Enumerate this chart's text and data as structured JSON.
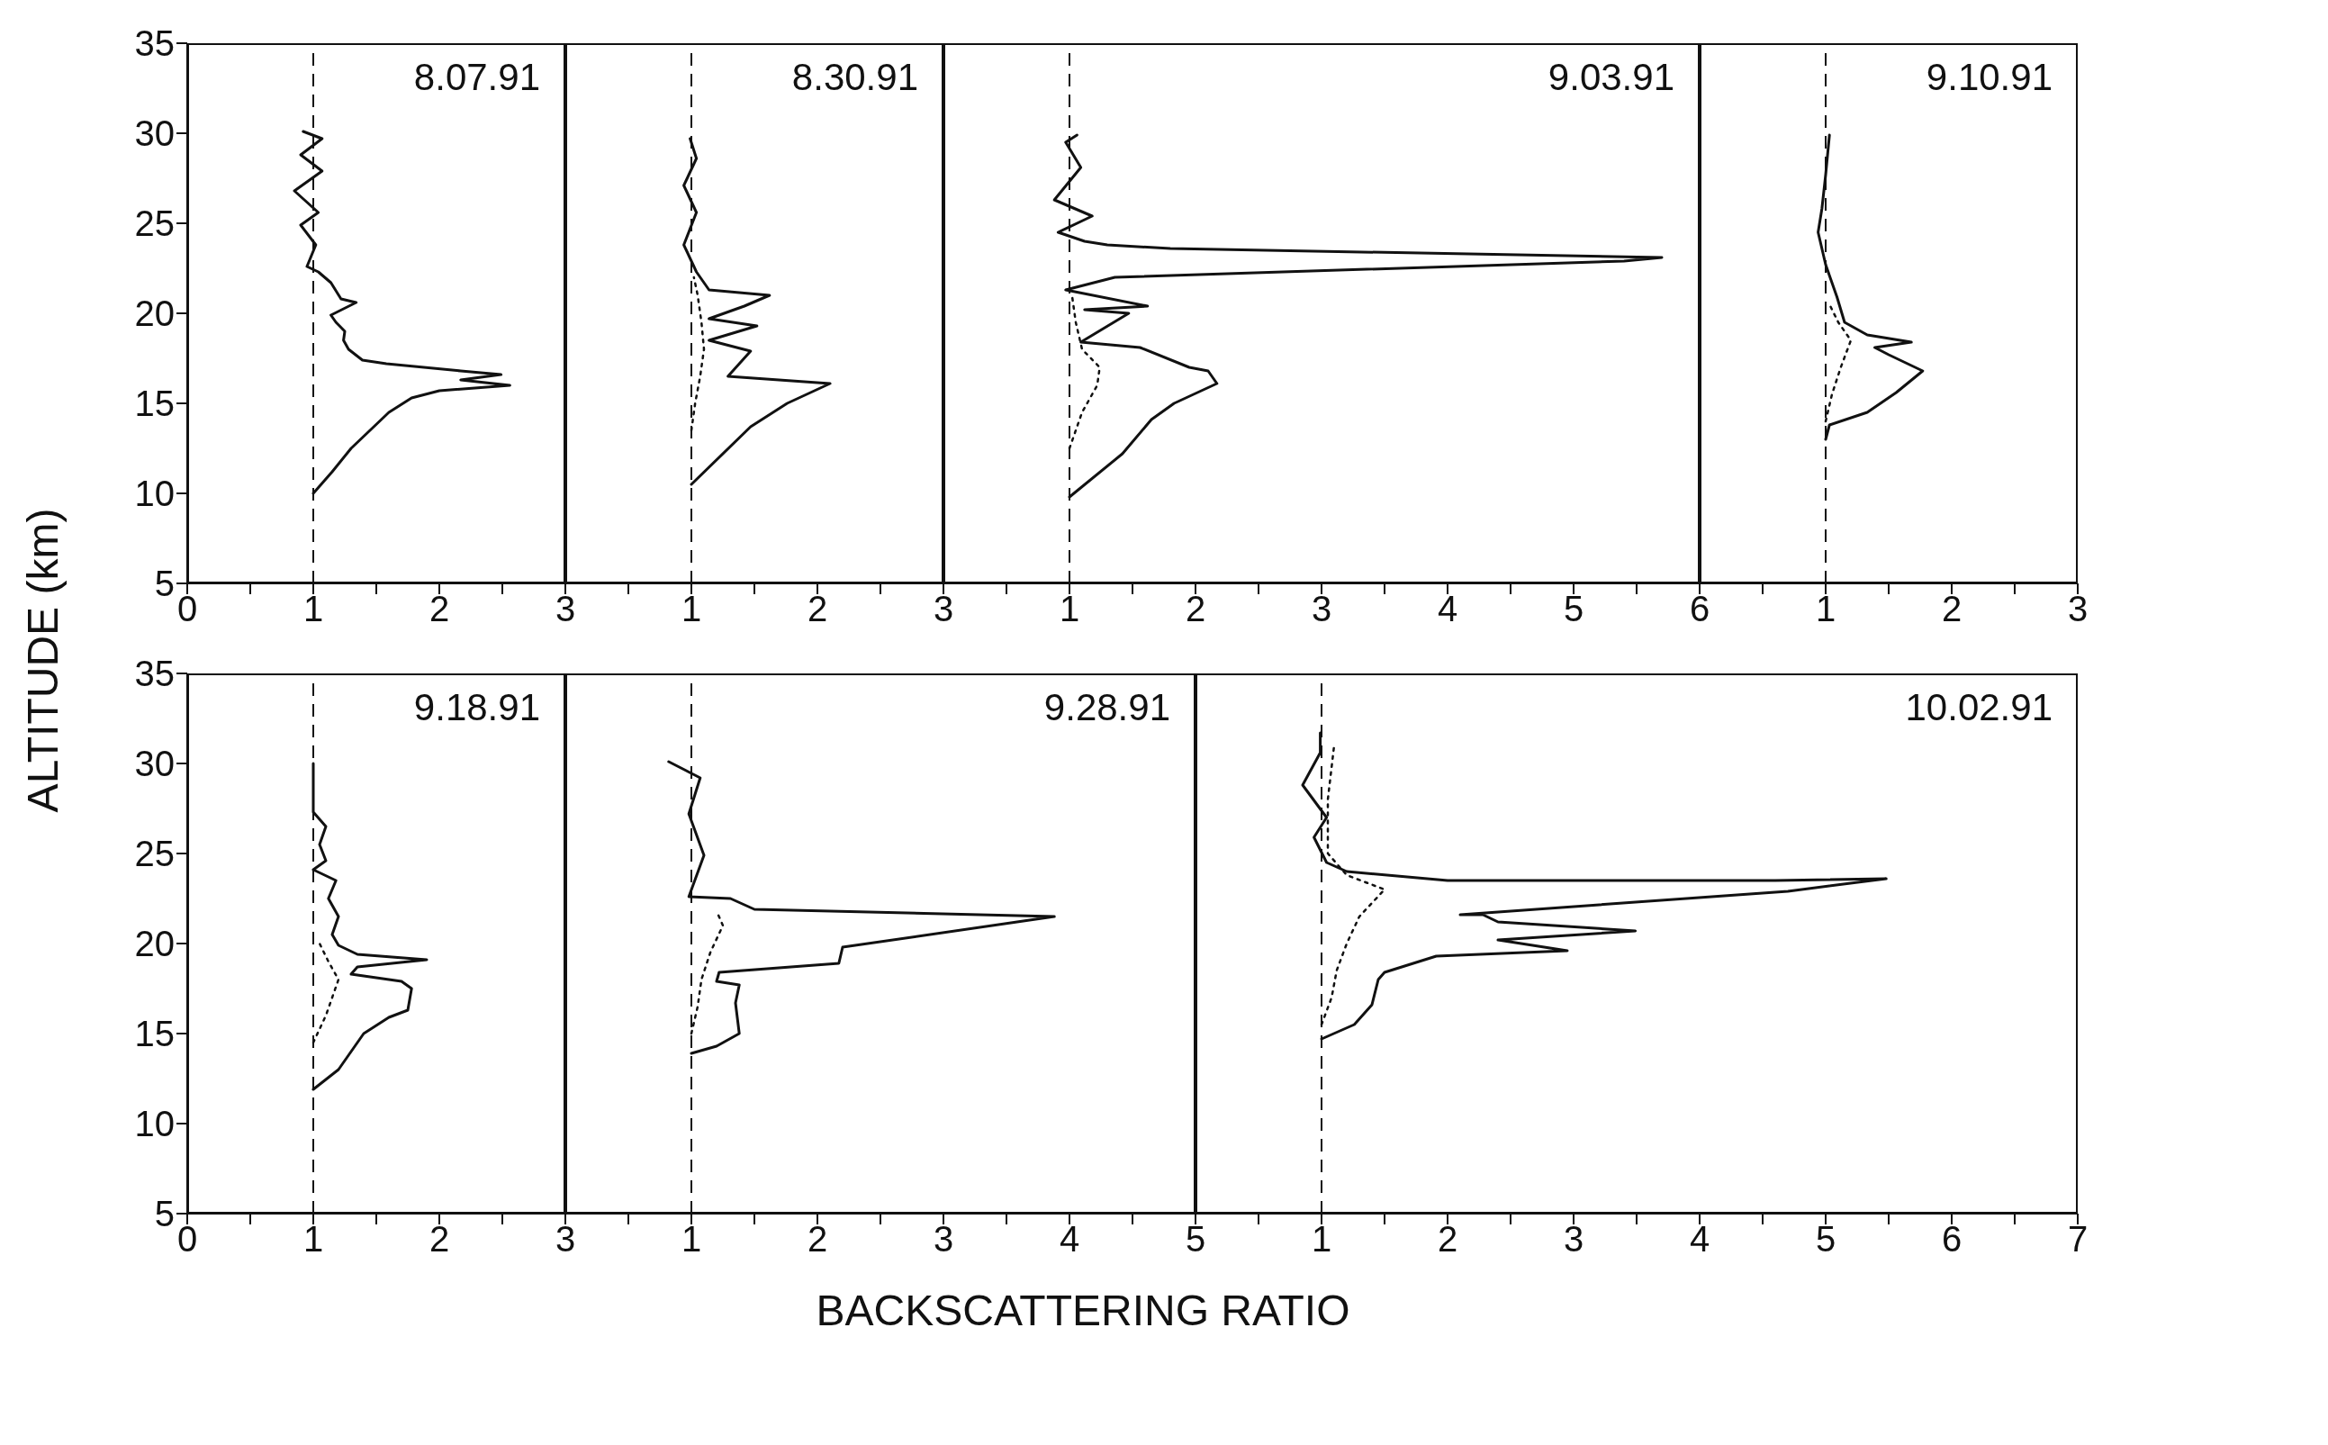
{
  "chart_data": [
    {
      "type": "line",
      "title": "8.07.91",
      "ylabel": "ALTITUDE (km)",
      "xlim": [
        0,
        3
      ],
      "xticks": [
        0,
        {
          "value": 0.5,
          "label": null
        },
        1,
        {
          "value": 1.5,
          "label": null
        },
        2,
        {
          "value": 2.5,
          "label": null
        },
        3
      ],
      "ylim": [
        5,
        35
      ],
      "yticks": [
        5,
        10,
        15,
        20,
        25,
        30,
        35
      ],
      "ref_lines": [
        {
          "axis": "x",
          "value": 1,
          "line_style": "dashed",
          "color": "#111111"
        }
      ],
      "series": [
        {
          "color": "#111111",
          "line_style": "solid",
          "x": [
            1.0,
            1.15,
            1.3,
            1.45,
            1.6,
            1.78,
            2.0,
            2.56,
            2.17,
            2.49,
            2.17,
            1.58,
            1.39,
            1.28,
            1.24,
            1.25,
            1.18,
            1.14,
            1.34,
            1.22,
            1.14,
            1.04,
            0.95,
            1.02,
            0.9,
            1.04,
            0.85,
            1.07,
            0.9,
            1.07,
            0.92
          ],
          "values": [
            10.0,
            11.2,
            12.5,
            13.5,
            14.5,
            15.3,
            15.7,
            16.0,
            16.3,
            16.6,
            16.8,
            17.2,
            17.4,
            18.0,
            18.5,
            19.0,
            19.5,
            19.9,
            20.6,
            20.8,
            21.7,
            22.3,
            22.6,
            23.8,
            24.9,
            25.6,
            26.8,
            27.9,
            28.8,
            29.7,
            30.1
          ]
        }
      ]
    },
    {
      "type": "line",
      "title": "8.30.91",
      "xlim": [
        0,
        3
      ],
      "xticks": [
        {
          "value": 0,
          "label": null
        },
        {
          "value": 0.5,
          "label": null
        },
        1,
        {
          "value": 1.5,
          "label": null
        },
        2,
        {
          "value": 2.5,
          "label": null
        },
        3
      ],
      "ylim": [
        5,
        35
      ],
      "yticks": [
        5,
        10,
        15,
        20,
        25,
        30,
        35
      ],
      "tick_labels": "x",
      "ref_lines": [
        {
          "axis": "x",
          "value": 1,
          "line_style": "dashed",
          "color": "#111111"
        }
      ],
      "series": [
        {
          "color": "#111111",
          "line_style": "solid",
          "x": [
            1.0,
            1.47,
            1.76,
            2.1,
            1.29,
            1.47,
            1.14,
            1.52,
            1.14,
            1.42,
            1.62,
            1.14,
            1.04,
            0.94,
            1.04,
            0.94,
            1.04,
            0.99
          ],
          "values": [
            10.5,
            13.7,
            15.0,
            16.1,
            16.5,
            17.9,
            18.5,
            19.3,
            19.7,
            20.4,
            21.0,
            21.3,
            22.3,
            23.8,
            25.6,
            27.1,
            28.6,
            29.7
          ]
        },
        {
          "color": "#111111",
          "line_style": "dotted",
          "x": [
            1.0,
            1.03,
            1.07,
            1.1,
            1.08,
            1.05,
            1.02
          ],
          "values": [
            13.5,
            15.0,
            16.5,
            18.0,
            19.5,
            21.0,
            22.0
          ]
        }
      ]
    },
    {
      "type": "line",
      "title": "9.03.91",
      "xlim": [
        0,
        6
      ],
      "xticks": [
        {
          "value": 0,
          "label": null
        },
        {
          "value": 0.5,
          "label": null
        },
        1,
        {
          "value": 1.5,
          "label": null
        },
        2,
        {
          "value": 2.5,
          "label": null
        },
        3,
        {
          "value": 3.5,
          "label": null
        },
        4,
        {
          "value": 4.5,
          "label": null
        },
        5,
        {
          "value": 5.5,
          "label": null
        },
        6
      ],
      "ylim": [
        5,
        35
      ],
      "yticks": [
        5,
        10,
        15,
        20,
        25,
        30,
        35
      ],
      "tick_labels": "x",
      "ref_lines": [
        {
          "axis": "x",
          "value": 1,
          "line_style": "dashed",
          "color": "#111111"
        }
      ],
      "series": [
        {
          "color": "#111111",
          "line_style": "solid",
          "x": [
            1.0,
            1.42,
            1.65,
            1.83,
            2.17,
            2.1,
            1.95,
            1.56,
            1.09,
            1.47,
            1.12,
            1.62,
            0.97,
            1.36,
            5.4,
            5.7,
            1.8,
            1.3,
            1.12,
            0.91,
            1.18,
            0.88,
            1.09,
            0.97,
            1.06
          ],
          "values": [
            9.8,
            12.2,
            14.1,
            15.0,
            16.1,
            16.8,
            17.0,
            18.1,
            18.4,
            20.0,
            20.2,
            20.4,
            21.3,
            22.0,
            22.9,
            23.1,
            23.6,
            23.8,
            24.0,
            24.5,
            25.4,
            26.3,
            28.1,
            29.5,
            29.9
          ]
        },
        {
          "color": "#111111",
          "line_style": "dotted",
          "x": [
            1.0,
            1.1,
            1.22,
            1.24,
            1.1,
            1.05,
            1.02
          ],
          "values": [
            12.5,
            14.5,
            16.0,
            17.0,
            18.0,
            19.5,
            21.0
          ]
        }
      ]
    },
    {
      "type": "line",
      "title": "9.10.91",
      "xlim": [
        0,
        3
      ],
      "xticks": [
        {
          "value": 0,
          "label": null
        },
        {
          "value": 0.5,
          "label": null
        },
        1,
        {
          "value": 1.5,
          "label": null
        },
        2,
        {
          "value": 2.5,
          "label": null
        },
        3
      ],
      "ylim": [
        5,
        35
      ],
      "yticks": [
        5,
        10,
        15,
        20,
        25,
        30,
        35
      ],
      "tick_labels": "x",
      "ref_lines": [
        {
          "axis": "x",
          "value": 1,
          "line_style": "dashed",
          "color": "#111111"
        }
      ],
      "series": [
        {
          "color": "#111111",
          "line_style": "solid",
          "x": [
            1.0,
            1.03,
            1.33,
            1.56,
            1.77,
            1.5,
            1.39,
            1.68,
            1.33,
            1.15,
            1.09,
            1.0,
            0.94,
            0.97,
            1.0,
            1.03
          ],
          "values": [
            13.0,
            13.8,
            14.5,
            15.6,
            16.8,
            17.7,
            18.1,
            18.4,
            18.8,
            19.5,
            20.9,
            22.7,
            24.5,
            25.8,
            27.7,
            29.9
          ]
        },
        {
          "color": "#111111",
          "line_style": "dotted",
          "x": [
            1.0,
            1.05,
            1.12,
            1.2,
            1.1,
            1.03
          ],
          "values": [
            14.0,
            15.5,
            17.0,
            18.5,
            19.5,
            20.5
          ]
        }
      ]
    },
    {
      "type": "line",
      "title": "9.18.91",
      "xlim": [
        0,
        3
      ],
      "xticks": [
        0,
        {
          "value": 0.5,
          "label": null
        },
        1,
        {
          "value": 1.5,
          "label": null
        },
        2,
        {
          "value": 2.5,
          "label": null
        },
        3
      ],
      "ylim": [
        5,
        35
      ],
      "yticks": [
        5,
        10,
        15,
        20,
        25,
        30,
        35
      ],
      "ref_lines": [
        {
          "axis": "x",
          "value": 1,
          "line_style": "dashed",
          "color": "#111111"
        }
      ],
      "series": [
        {
          "color": "#111111",
          "line_style": "solid",
          "x": [
            1.0,
            1.2,
            1.4,
            1.6,
            1.75,
            1.78,
            1.7,
            1.3,
            1.35,
            1.9,
            1.35,
            1.2,
            1.15,
            1.2,
            1.12,
            1.18,
            1.0,
            1.1,
            1.05,
            1.1,
            1.0,
            1.0
          ],
          "values": [
            11.9,
            13.0,
            15.0,
            15.9,
            16.3,
            17.5,
            17.9,
            18.3,
            18.7,
            19.1,
            19.4,
            19.9,
            20.5,
            21.5,
            22.5,
            23.5,
            24.1,
            24.6,
            25.5,
            26.5,
            27.3,
            30.0
          ]
        },
        {
          "color": "#111111",
          "line_style": "dotted",
          "x": [
            1.0,
            1.1,
            1.15,
            1.2,
            1.12,
            1.05
          ],
          "values": [
            14.5,
            16.0,
            17.0,
            18.0,
            19.0,
            20.0
          ]
        }
      ]
    },
    {
      "type": "line",
      "title": "9.28.91",
      "xlabel": "BACKSCATTERING RATIO",
      "xlim": [
        0,
        5
      ],
      "xticks": [
        {
          "value": 0,
          "label": null
        },
        {
          "value": 0.5,
          "label": null
        },
        1,
        {
          "value": 1.5,
          "label": null
        },
        2,
        {
          "value": 2.5,
          "label": null
        },
        3,
        {
          "value": 3.5,
          "label": null
        },
        4,
        {
          "value": 4.5,
          "label": null
        },
        5
      ],
      "ylim": [
        5,
        35
      ],
      "yticks": [
        5,
        10,
        15,
        20,
        25,
        30,
        35
      ],
      "tick_labels": "x",
      "ref_lines": [
        {
          "axis": "x",
          "value": 1,
          "line_style": "dashed",
          "color": "#111111"
        }
      ],
      "series": [
        {
          "color": "#111111",
          "line_style": "solid",
          "x": [
            1.0,
            1.2,
            1.38,
            1.35,
            1.38,
            1.2,
            1.22,
            2.17,
            2.2,
            3.88,
            1.5,
            1.31,
            0.98,
            1.1,
            0.98,
            1.07,
            0.82
          ],
          "values": [
            13.9,
            14.3,
            15.0,
            16.7,
            17.7,
            17.9,
            18.4,
            18.9,
            19.8,
            21.5,
            21.9,
            22.5,
            22.6,
            24.9,
            27.2,
            29.2,
            30.1
          ]
        },
        {
          "color": "#111111",
          "line_style": "dotted",
          "x": [
            1.0,
            1.05,
            1.08,
            1.15,
            1.25,
            1.2
          ],
          "values": [
            15.0,
            16.5,
            18.0,
            19.5,
            21.0,
            21.8
          ]
        }
      ]
    },
    {
      "type": "line",
      "title": "10.02.91",
      "xlim": [
        0,
        7
      ],
      "xticks": [
        {
          "value": 0,
          "label": null
        },
        {
          "value": 0.5,
          "label": null
        },
        1,
        {
          "value": 1.5,
          "label": null
        },
        2,
        {
          "value": 2.5,
          "label": null
        },
        3,
        {
          "value": 3.5,
          "label": null
        },
        4,
        {
          "value": 4.5,
          "label": null
        },
        5,
        {
          "value": 5.5,
          "label": null
        },
        6,
        {
          "value": 6.5,
          "label": null
        },
        7
      ],
      "ylim": [
        5,
        35
      ],
      "yticks": [
        5,
        10,
        15,
        20,
        25,
        30,
        35
      ],
      "tick_labels": "x",
      "ref_lines": [
        {
          "axis": "x",
          "value": 1,
          "line_style": "dashed",
          "color": "#111111"
        }
      ],
      "series": [
        {
          "color": "#111111",
          "line_style": "solid",
          "x": [
            1.0,
            1.26,
            1.4,
            1.45,
            1.5,
            1.91,
            2.95,
            2.4,
            3.49,
            2.4,
            2.28,
            2.1,
            4.7,
            5.48,
            4.6,
            2.0,
            1.2,
            1.04,
            0.94,
            1.04,
            0.85,
            0.99,
            0.99
          ],
          "values": [
            14.7,
            15.5,
            16.6,
            18.0,
            18.4,
            19.3,
            19.6,
            20.2,
            20.7,
            21.2,
            21.6,
            21.6,
            22.9,
            23.6,
            23.5,
            23.5,
            24.0,
            24.5,
            25.9,
            27.0,
            28.8,
            30.6,
            31.7
          ]
        },
        {
          "color": "#111111",
          "line_style": "dotted",
          "x": [
            1.0,
            1.08,
            1.12,
            1.2,
            1.3,
            1.5,
            1.2,
            1.05,
            1.05,
            1.1
          ],
          "values": [
            15.5,
            17.0,
            18.5,
            20.0,
            21.5,
            23.0,
            23.8,
            25.0,
            28.0,
            31.0
          ]
        }
      ]
    }
  ]
}
